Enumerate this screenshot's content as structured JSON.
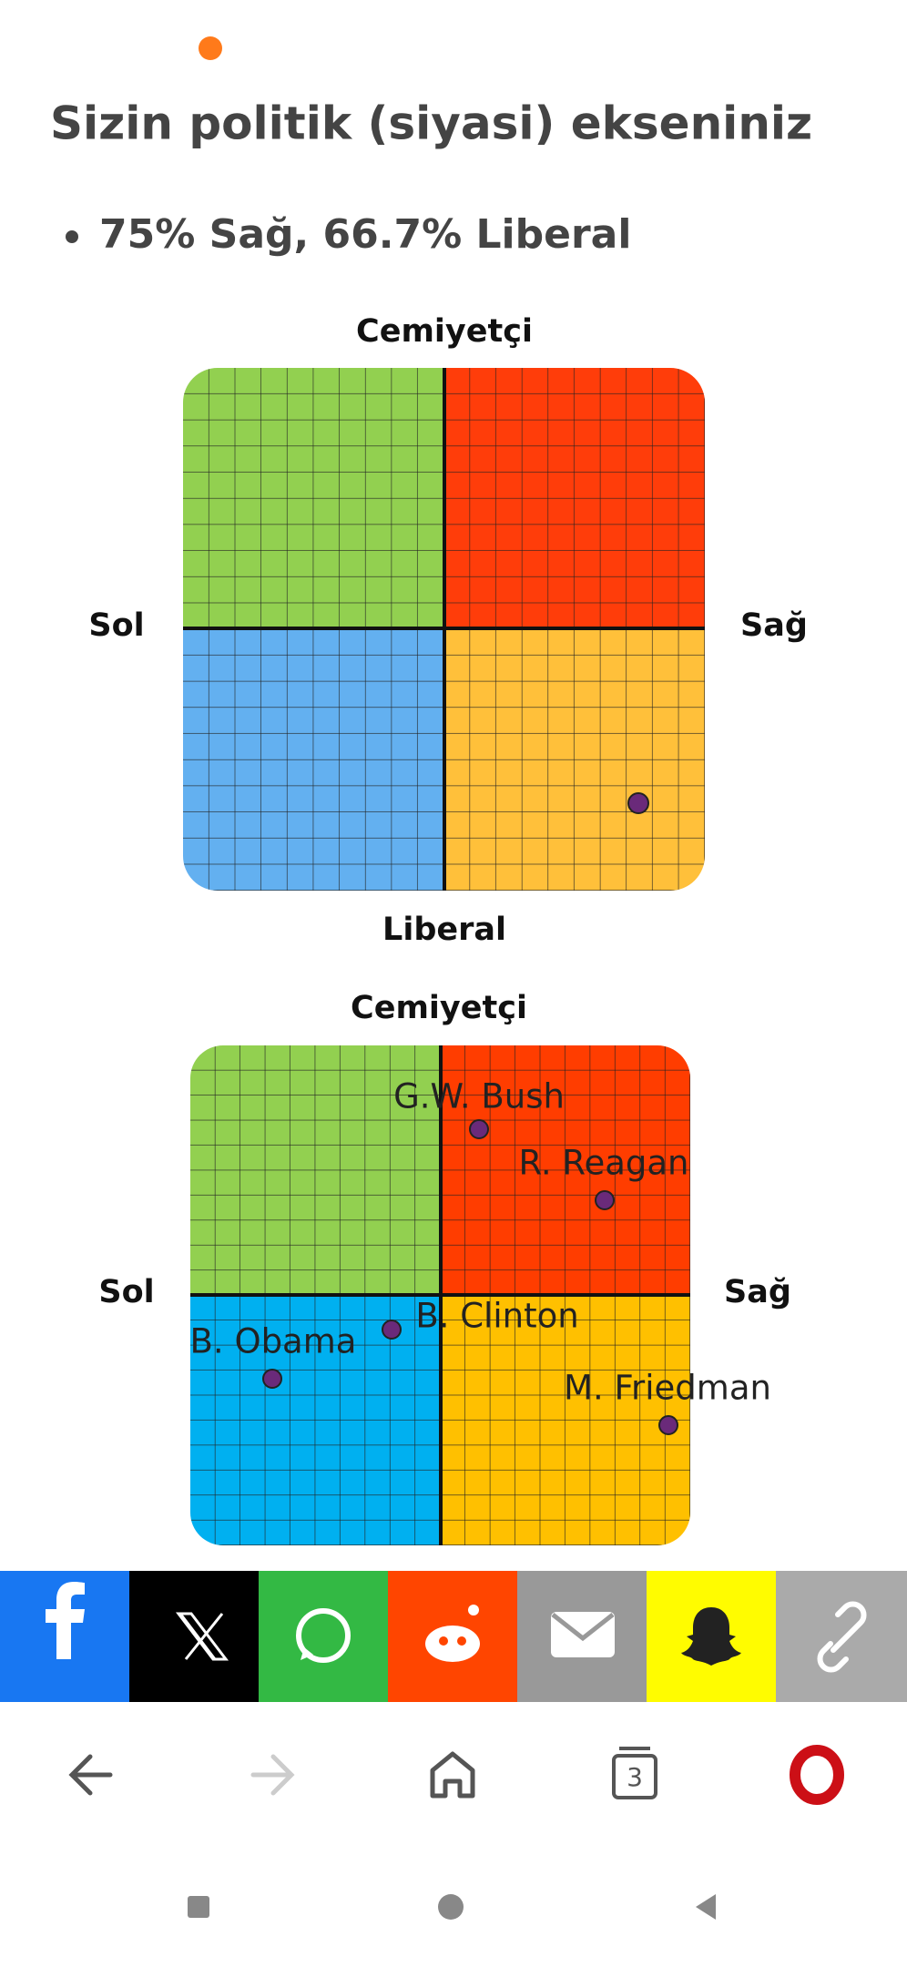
{
  "header": {
    "title": "Sizin politik (siyasi) ekseniniz",
    "result": "75% Sağ, 66.7% Liberal"
  },
  "compass_1": {
    "top": "Cemiyetçi",
    "left": "Sol",
    "right": "Sağ",
    "bottom": "Liberal"
  },
  "compass_2": {
    "top": "Cemiyetçi",
    "left": "Sol",
    "right": "Sağ",
    "people": [
      "G.W. Bush",
      "R. Reagan",
      "B. Clinton",
      "B. Obama",
      "M. Friedman"
    ]
  },
  "browser": {
    "tab_count": "3"
  }
}
